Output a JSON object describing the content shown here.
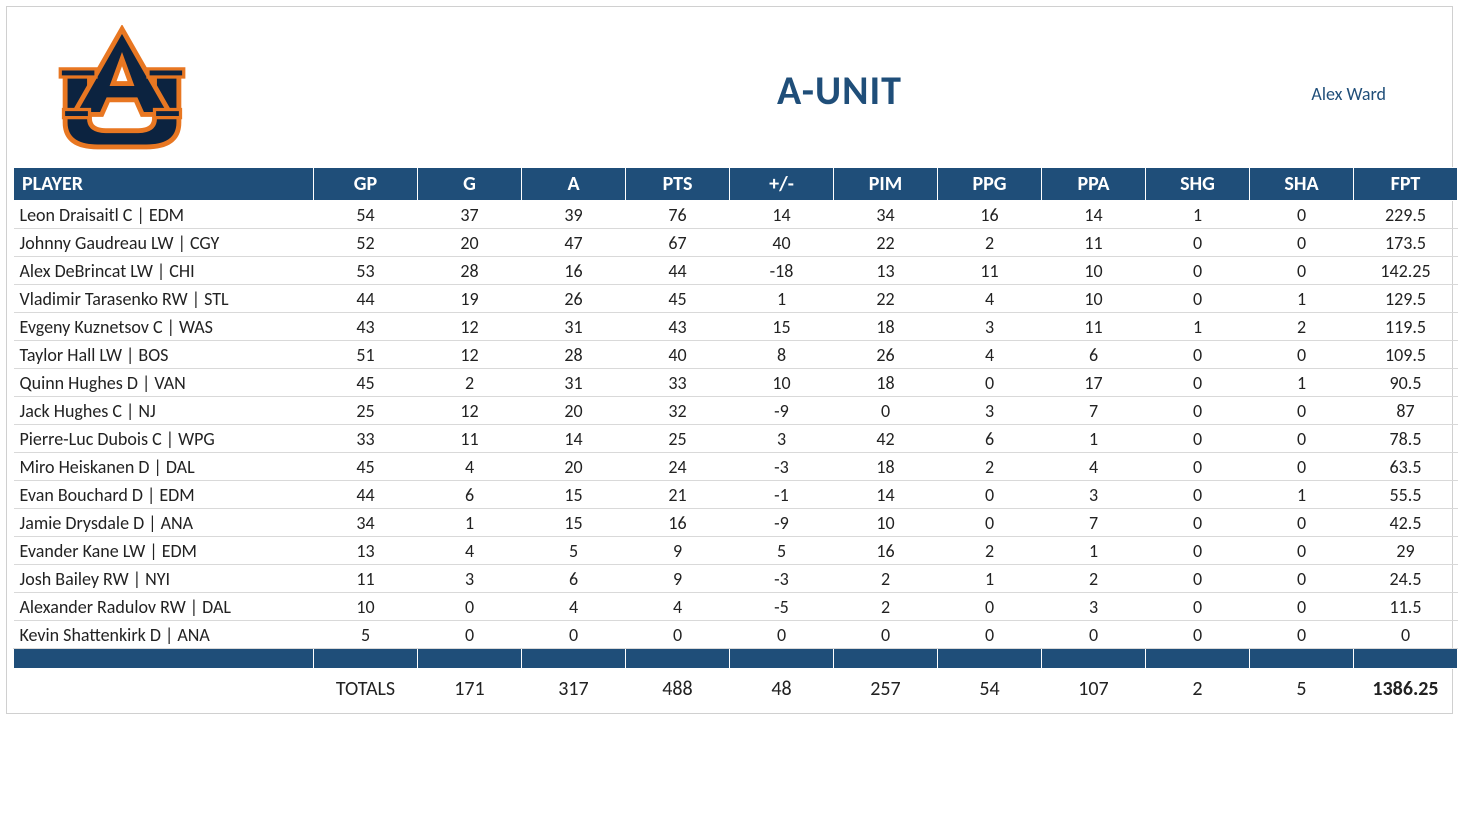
{
  "header": {
    "title": "A-UNIT",
    "owner": "Alex Ward",
    "title_color": "#1f4e79",
    "owner_color": "#1f4e79"
  },
  "logo": {
    "name": "auburn-au-logo",
    "primary_color": "#0c2340",
    "accent_color": "#e87722"
  },
  "table": {
    "header_bg": "#1f4e79",
    "header_fg": "#ffffff",
    "row_border": "#d9d9d9",
    "columns": [
      "PLAYER",
      "GP",
      "G",
      "A",
      "PTS",
      "+/-",
      "PIM",
      "PPG",
      "PPA",
      "SHG",
      "SHA",
      "FPT"
    ],
    "rows": [
      {
        "player": "Leon Draisaitl C | EDM",
        "gp": 54,
        "g": 37,
        "a": 39,
        "pts": 76,
        "pm": 14,
        "pim": 34,
        "ppg": 16,
        "ppa": 14,
        "shg": 1,
        "sha": 0,
        "fpt": 229.5
      },
      {
        "player": "Johnny Gaudreau LW | CGY",
        "gp": 52,
        "g": 20,
        "a": 47,
        "pts": 67,
        "pm": 40,
        "pim": 22,
        "ppg": 2,
        "ppa": 11,
        "shg": 0,
        "sha": 0,
        "fpt": 173.5
      },
      {
        "player": "Alex DeBrincat LW | CHI",
        "gp": 53,
        "g": 28,
        "a": 16,
        "pts": 44,
        "pm": -18,
        "pim": 13,
        "ppg": 11,
        "ppa": 10,
        "shg": 0,
        "sha": 0,
        "fpt": 142.25
      },
      {
        "player": "Vladimir Tarasenko RW | STL",
        "gp": 44,
        "g": 19,
        "a": 26,
        "pts": 45,
        "pm": 1,
        "pim": 22,
        "ppg": 4,
        "ppa": 10,
        "shg": 0,
        "sha": 1,
        "fpt": 129.5
      },
      {
        "player": "Evgeny Kuznetsov C | WAS",
        "gp": 43,
        "g": 12,
        "a": 31,
        "pts": 43,
        "pm": 15,
        "pim": 18,
        "ppg": 3,
        "ppa": 11,
        "shg": 1,
        "sha": 2,
        "fpt": 119.5
      },
      {
        "player": "Taylor Hall LW | BOS",
        "gp": 51,
        "g": 12,
        "a": 28,
        "pts": 40,
        "pm": 8,
        "pim": 26,
        "ppg": 4,
        "ppa": 6,
        "shg": 0,
        "sha": 0,
        "fpt": 109.5
      },
      {
        "player": "Quinn Hughes D | VAN",
        "gp": 45,
        "g": 2,
        "a": 31,
        "pts": 33,
        "pm": 10,
        "pim": 18,
        "ppg": 0,
        "ppa": 17,
        "shg": 0,
        "sha": 1,
        "fpt": 90.5
      },
      {
        "player": "Jack Hughes C | NJ",
        "gp": 25,
        "g": 12,
        "a": 20,
        "pts": 32,
        "pm": -9,
        "pim": 0,
        "ppg": 3,
        "ppa": 7,
        "shg": 0,
        "sha": 0,
        "fpt": 87
      },
      {
        "player": "Pierre-Luc Dubois C | WPG",
        "gp": 33,
        "g": 11,
        "a": 14,
        "pts": 25,
        "pm": 3,
        "pim": 42,
        "ppg": 6,
        "ppa": 1,
        "shg": 0,
        "sha": 0,
        "fpt": 78.5
      },
      {
        "player": "Miro Heiskanen D | DAL",
        "gp": 45,
        "g": 4,
        "a": 20,
        "pts": 24,
        "pm": -3,
        "pim": 18,
        "ppg": 2,
        "ppa": 4,
        "shg": 0,
        "sha": 0,
        "fpt": 63.5
      },
      {
        "player": "Evan Bouchard D | EDM",
        "gp": 44,
        "g": 6,
        "a": 15,
        "pts": 21,
        "pm": -1,
        "pim": 14,
        "ppg": 0,
        "ppa": 3,
        "shg": 0,
        "sha": 1,
        "fpt": 55.5
      },
      {
        "player": "Jamie Drysdale D | ANA",
        "gp": 34,
        "g": 1,
        "a": 15,
        "pts": 16,
        "pm": -9,
        "pim": 10,
        "ppg": 0,
        "ppa": 7,
        "shg": 0,
        "sha": 0,
        "fpt": 42.5
      },
      {
        "player": "Evander Kane LW | EDM",
        "gp": 13,
        "g": 4,
        "a": 5,
        "pts": 9,
        "pm": 5,
        "pim": 16,
        "ppg": 2,
        "ppa": 1,
        "shg": 0,
        "sha": 0,
        "fpt": 29
      },
      {
        "player": "Josh Bailey RW | NYI",
        "gp": 11,
        "g": 3,
        "a": 6,
        "pts": 9,
        "pm": -3,
        "pim": 2,
        "ppg": 1,
        "ppa": 2,
        "shg": 0,
        "sha": 0,
        "fpt": 24.5
      },
      {
        "player": "Alexander Radulov RW | DAL",
        "gp": 10,
        "g": 0,
        "a": 4,
        "pts": 4,
        "pm": -5,
        "pim": 2,
        "ppg": 0,
        "ppa": 3,
        "shg": 0,
        "sha": 0,
        "fpt": 11.5
      },
      {
        "player": "Kevin Shattenkirk D | ANA",
        "gp": 5,
        "g": 0,
        "a": 0,
        "pts": 0,
        "pm": 0,
        "pim": 0,
        "ppg": 0,
        "ppa": 0,
        "shg": 0,
        "sha": 0,
        "fpt": 0
      }
    ],
    "totals": {
      "label": "TOTALS",
      "g": 171,
      "a": 317,
      "pts": 488,
      "pm": 48,
      "pim": 257,
      "ppg": 54,
      "ppa": 107,
      "shg": 2,
      "sha": 5,
      "fpt": 1386.25
    }
  }
}
